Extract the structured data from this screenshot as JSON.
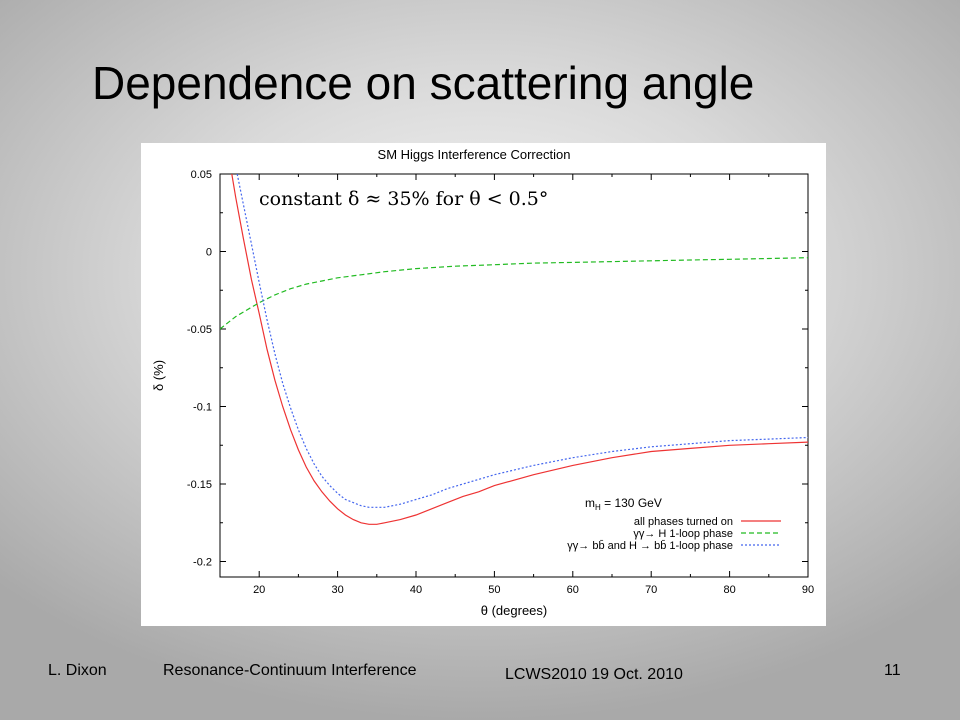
{
  "slide": {
    "title": "Dependence on scattering angle",
    "footer": {
      "author": "L. Dixon",
      "talk": "Resonance-Continuum Interference",
      "conference": "LCWS2010   19 Oct. 2010",
      "page": "11"
    }
  },
  "chart_data": {
    "type": "line",
    "title": "SM Higgs Interference Correction",
    "xlabel": "θ (degrees)",
    "ylabel": "δ (%)",
    "xlim": [
      15,
      90
    ],
    "ylim": [
      -0.21,
      0.05
    ],
    "x_ticks": [
      20,
      30,
      40,
      50,
      60,
      70,
      80,
      90
    ],
    "y_ticks": [
      0.05,
      0,
      -0.05,
      -0.1,
      -0.15,
      -0.2
    ],
    "y_tick_labels": [
      "0.05",
      "0",
      "-0.05",
      "-0.1",
      "-0.15",
      "-0.2"
    ],
    "grid": false,
    "annotation": "constant δ ≈ 35% for θ < 0.5°",
    "legend": {
      "position": "bottom-right",
      "title_main": "m",
      "title_sub": "H",
      "title_rest": " = 130 GeV"
    },
    "series": [
      {
        "name": "all phases turned on",
        "color": "#ee3333",
        "dash": "solid",
        "x": [
          16.5,
          17,
          18,
          19,
          20,
          21,
          22,
          23,
          24,
          25,
          26,
          27,
          28,
          29,
          30,
          31,
          32,
          33,
          34,
          35,
          36,
          38,
          40,
          42,
          44,
          46,
          48,
          50,
          55,
          60,
          65,
          70,
          75,
          80,
          85,
          90
        ],
        "y": [
          0.05,
          0.035,
          0.008,
          -0.018,
          -0.04,
          -0.063,
          -0.083,
          -0.1,
          -0.115,
          -0.128,
          -0.139,
          -0.148,
          -0.155,
          -0.161,
          -0.166,
          -0.17,
          -0.173,
          -0.175,
          -0.176,
          -0.176,
          -0.175,
          -0.173,
          -0.17,
          -0.166,
          -0.162,
          -0.158,
          -0.155,
          -0.151,
          -0.144,
          -0.138,
          -0.133,
          -0.129,
          -0.127,
          -0.125,
          -0.124,
          -0.123
        ]
      },
      {
        "name": "γγ→ H 1-loop phase",
        "color": "#22bb22",
        "dash": "dashed",
        "x": [
          15,
          16,
          17,
          18,
          19,
          20,
          22,
          24,
          26,
          28,
          30,
          33,
          36,
          40,
          45,
          50,
          55,
          60,
          65,
          70,
          75,
          80,
          85,
          90
        ],
        "y": [
          -0.05,
          -0.046,
          -0.042,
          -0.039,
          -0.036,
          -0.033,
          -0.028,
          -0.024,
          -0.021,
          -0.019,
          -0.017,
          -0.015,
          -0.013,
          -0.011,
          -0.0095,
          -0.0085,
          -0.0075,
          -0.007,
          -0.0065,
          -0.006,
          -0.0055,
          -0.005,
          -0.0045,
          -0.004
        ]
      },
      {
        "name": "γγ→ bb̄ and H → bb̄ 1-loop phase",
        "color": "#4466ee",
        "dash": "dotted",
        "x": [
          17.2,
          18,
          19,
          20,
          21,
          22,
          23,
          24,
          25,
          26,
          27,
          28,
          29,
          30,
          31,
          32,
          33,
          34,
          35,
          36,
          38,
          40,
          42,
          44,
          46,
          48,
          50,
          55,
          60,
          65,
          70,
          75,
          80,
          85,
          90
        ],
        "y": [
          0.05,
          0.03,
          0.005,
          -0.02,
          -0.044,
          -0.066,
          -0.085,
          -0.101,
          -0.115,
          -0.127,
          -0.137,
          -0.145,
          -0.151,
          -0.156,
          -0.16,
          -0.162,
          -0.164,
          -0.165,
          -0.165,
          -0.165,
          -0.163,
          -0.16,
          -0.157,
          -0.153,
          -0.15,
          -0.147,
          -0.144,
          -0.138,
          -0.133,
          -0.129,
          -0.126,
          -0.124,
          -0.122,
          -0.121,
          -0.12
        ]
      }
    ]
  }
}
